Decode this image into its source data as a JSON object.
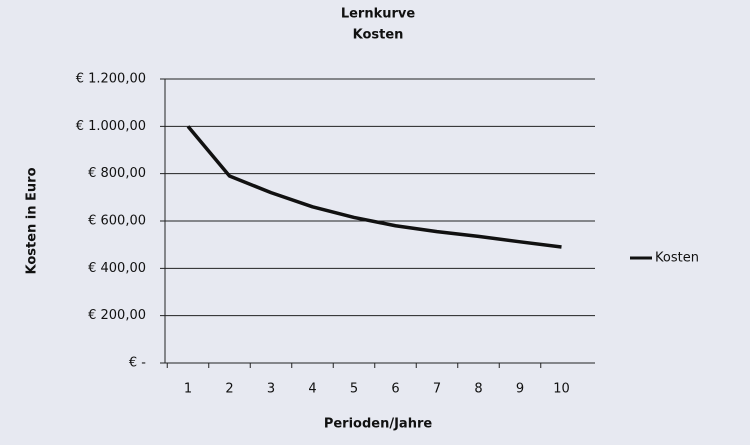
{
  "chart_data": {
    "type": "line",
    "title": "Lernkurve",
    "subtitle": "Kosten",
    "x_label": "Perioden/Jahre",
    "y_label": "Kosten in Euro",
    "categories": [
      "1",
      "2",
      "3",
      "4",
      "5",
      "6",
      "7",
      "8",
      "9",
      "10"
    ],
    "series": [
      {
        "name": "Kosten",
        "color": "#111111",
        "values": [
          1000,
          790,
          720,
          660,
          615,
          580,
          555,
          535,
          512,
          490
        ]
      }
    ],
    "ylim": [
      0,
      1200
    ],
    "yticks": [
      {
        "value": 0,
        "label": "€ -"
      },
      {
        "value": 200,
        "label": "€ 200,00"
      },
      {
        "value": 400,
        "label": "€ 400,00"
      },
      {
        "value": 600,
        "label": "€ 600,00"
      },
      {
        "value": 800,
        "label": "€ 800,00"
      },
      {
        "value": 1000,
        "label": "€ 1.000,00"
      },
      {
        "value": 1200,
        "label": "€ 1.200,00"
      }
    ],
    "grid": true,
    "legend": "right"
  }
}
